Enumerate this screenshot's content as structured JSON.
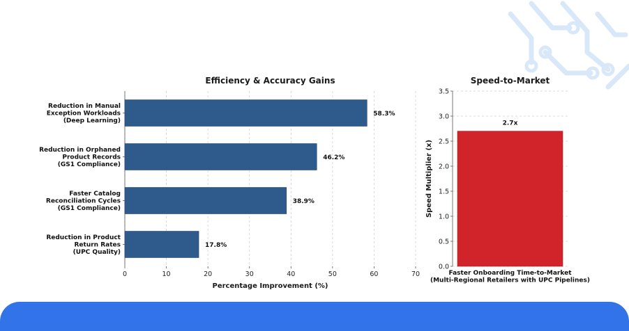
{
  "colors": {
    "bar_primary": "#2e5a8c",
    "bar_secondary": "#d1242a",
    "footer_band": "#3373ea",
    "decor": "#d9e8f9"
  },
  "decor_icon": "circuit-pattern-icon",
  "chart_data": [
    {
      "type": "bar",
      "orientation": "horizontal",
      "title": "Efficiency & Accuracy Gains",
      "xlabel": "Percentage Improvement (%)",
      "ylabel": "",
      "xlim": [
        0,
        70
      ],
      "xticks": [
        "0",
        "10",
        "20",
        "30",
        "40",
        "50",
        "60",
        "70"
      ],
      "grid": true,
      "categories": [
        [
          "Reduction in Manual",
          "Exception Workloads",
          "(Deep Learning)"
        ],
        [
          "Reduction in Orphaned",
          "Product Records",
          "(GS1 Compliance)"
        ],
        [
          "Faster Catalog",
          "Reconciliation Cycles",
          "(GS1 Compliance)"
        ],
        [
          "Reduction in Product",
          "Return Rates",
          "(UPC Quality)"
        ]
      ],
      "values": [
        58.3,
        46.2,
        38.9,
        17.8
      ],
      "data_labels": [
        "58.3%",
        "46.2%",
        "38.9%",
        "17.8%"
      ]
    },
    {
      "type": "bar",
      "title": "Speed-to-Market",
      "xlabel": "",
      "ylabel": "Speed Multiplier (x)",
      "ylim": [
        0,
        3.5
      ],
      "yticks": [
        "0.0",
        "0.5",
        "1.0",
        "1.5",
        "2.0",
        "2.5",
        "3.0",
        "3.5"
      ],
      "grid": true,
      "categories": [
        [
          "Faster Onboarding Time-to-Market",
          "(Multi-Regional Retailers with UPC Pipelines)"
        ]
      ],
      "values": [
        2.7
      ],
      "data_labels": [
        "2.7x"
      ]
    }
  ]
}
